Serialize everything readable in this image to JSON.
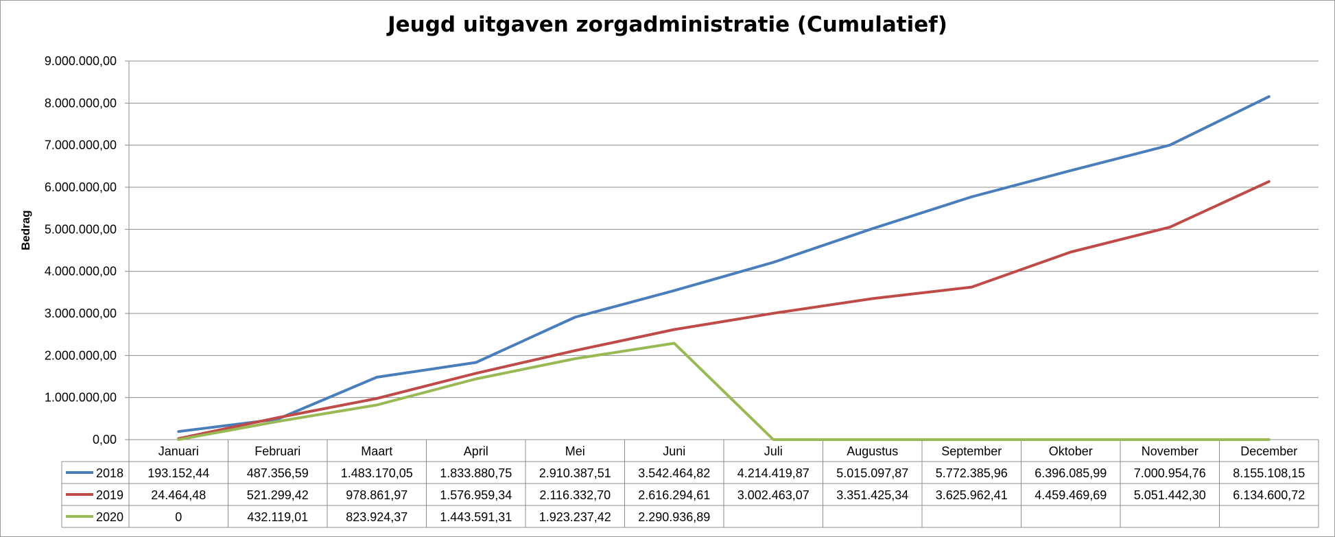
{
  "chart_data": {
    "type": "line",
    "title": "Jeugd uitgaven zorgadministratie (Cumulatief)",
    "ylabel": "Bedrag",
    "xlabel": "",
    "ylim": [
      0,
      9000000
    ],
    "yticks": [
      0,
      1000000,
      2000000,
      3000000,
      4000000,
      5000000,
      6000000,
      7000000,
      8000000,
      9000000
    ],
    "ytick_labels": [
      "0,00",
      "1.000.000,00",
      "2.000.000,00",
      "3.000.000,00",
      "4.000.000,00",
      "5.000.000,00",
      "6.000.000,00",
      "7.000.000,00",
      "8.000.000,00",
      "9.000.000,00"
    ],
    "grid": true,
    "legend": "data-table",
    "categories": [
      "Januari",
      "Februari",
      "Maart",
      "April",
      "Mei",
      "Juni",
      "Juli",
      "Augustus",
      "September",
      "Oktober",
      "November",
      "December"
    ],
    "series": [
      {
        "name": "2018",
        "color": "#4a7ebb",
        "values": [
          193152.44,
          487356.59,
          1483170.05,
          1833880.75,
          2910387.51,
          3542464.82,
          4214419.87,
          5015097.87,
          5772385.96,
          6396085.99,
          7000954.76,
          8155108.15
        ],
        "labels": [
          "193.152,44",
          "487.356,59",
          "1.483.170,05",
          "1.833.880,75",
          "2.910.387,51",
          "3.542.464,82",
          "4.214.419,87",
          "5.015.097,87",
          "5.772.385,96",
          "6.396.085,99",
          "7.000.954,76",
          "8.155.108,15"
        ]
      },
      {
        "name": "2019",
        "color": "#be4b48",
        "values": [
          24464.48,
          521299.42,
          978861.97,
          1576959.34,
          2116332.7,
          2616294.61,
          3002463.07,
          3351425.34,
          3625962.41,
          4459469.69,
          5051442.3,
          6134600.72
        ],
        "labels": [
          "24.464,48",
          "521.299,42",
          "978.861,97",
          "1.576.959,34",
          "2.116.332,70",
          "2.616.294,61",
          "3.002.463,07",
          "3.351.425,34",
          "3.625.962,41",
          "4.459.469,69",
          "5.051.442,30",
          "6.134.600,72"
        ]
      },
      {
        "name": "2020",
        "color": "#98b954",
        "values": [
          0,
          432119.01,
          823924.37,
          1443591.31,
          1923237.42,
          2290936.89,
          0,
          0,
          0,
          0,
          0,
          0
        ],
        "labels": [
          "0",
          "432.119,01",
          "823.924,37",
          "1.443.591,31",
          "1.923.237,42",
          "2.290.936,89",
          "",
          "",
          "",
          "",
          "",
          ""
        ]
      }
    ]
  }
}
